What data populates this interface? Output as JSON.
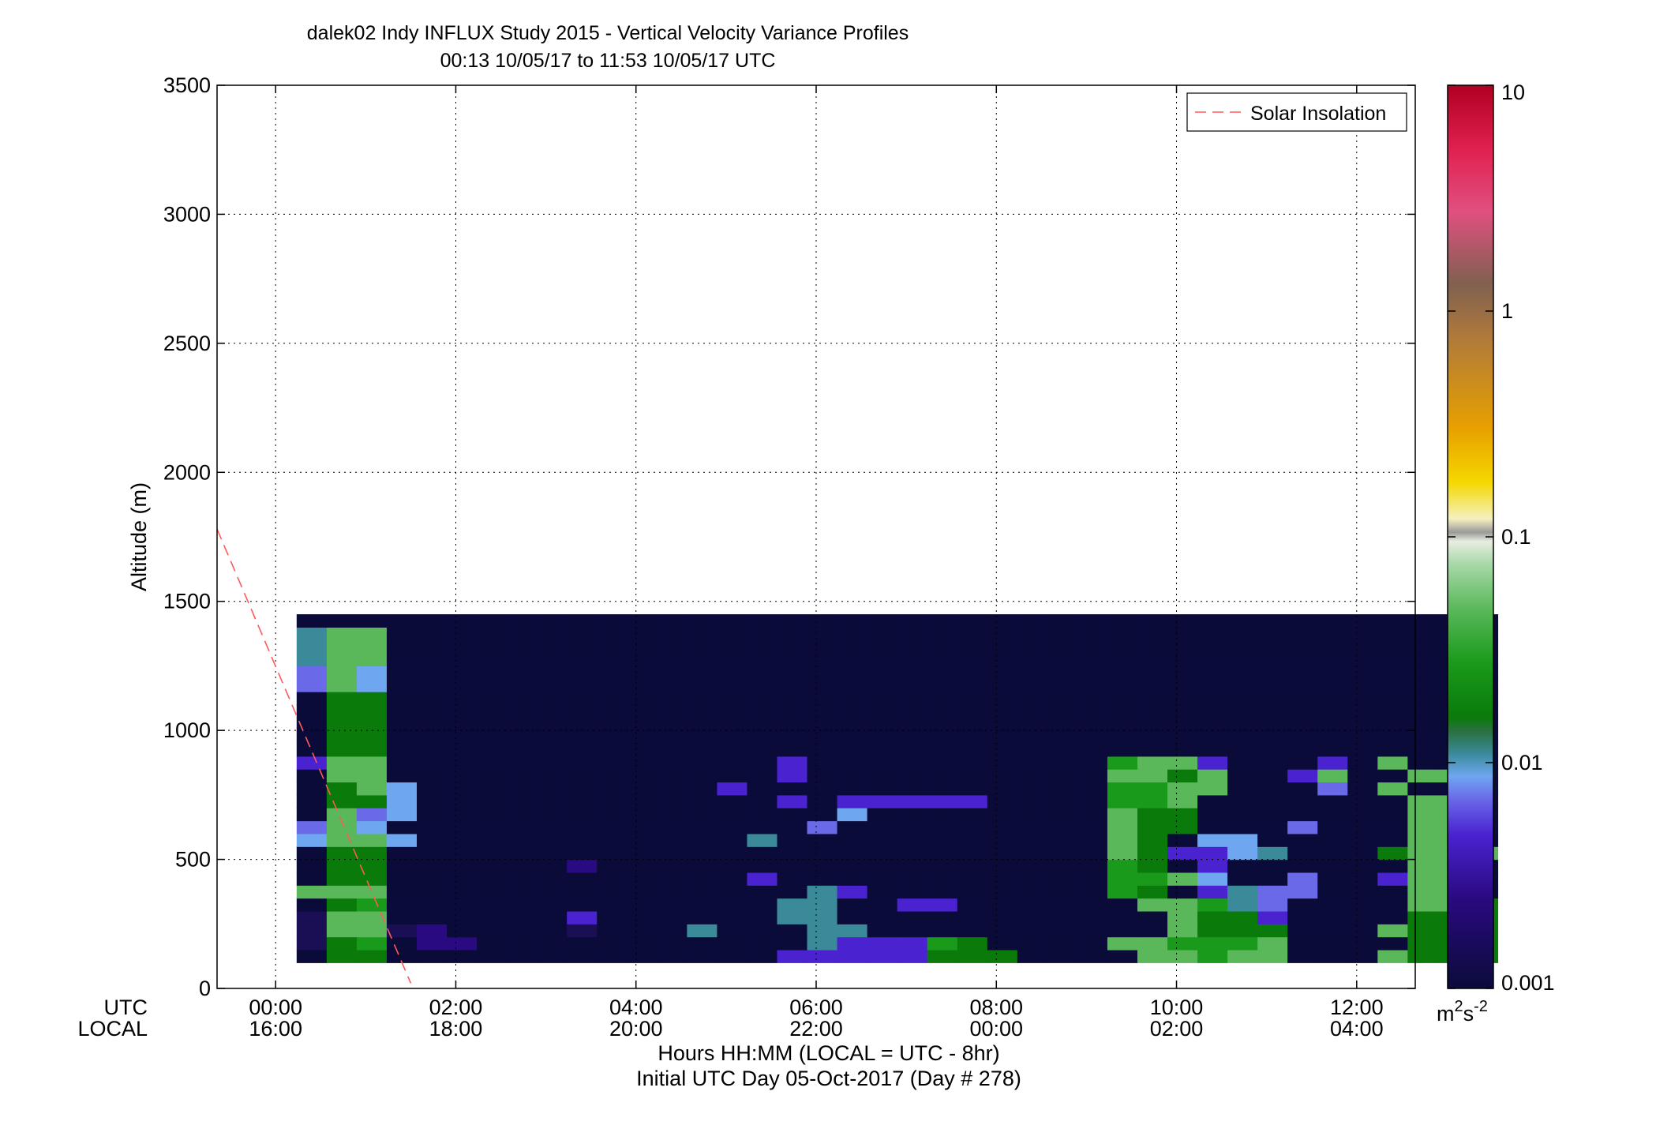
{
  "chart_data": {
    "type": "heatmap",
    "title": "dalek02 Indy INFLUX Study 2015 - Vertical Velocity Variance Profiles",
    "subtitle": "00:13 10/05/17 to 11:53 10/05/17  UTC",
    "ylabel": "Altitude (m)",
    "xlabel": "Hours HH:MM  (LOCAL = UTC - 8hr)",
    "xlabel2": "Initial UTC Day 05-Oct-2017 (Day # 278)",
    "axis_row_labels": [
      "UTC",
      "LOCAL"
    ],
    "ylim": [
      0,
      3500
    ],
    "xlim_hours": [
      -0.65,
      12.65
    ],
    "yticks": [
      0,
      500,
      1000,
      1500,
      2000,
      2500,
      3000,
      3500
    ],
    "xticks_utc": [
      "00:00",
      "02:00",
      "04:00",
      "06:00",
      "08:00",
      "10:00",
      "12:00"
    ],
    "xticks_local": [
      "16:00",
      "18:00",
      "20:00",
      "22:00",
      "00:00",
      "02:00",
      "04:00"
    ],
    "grid": true,
    "legend": {
      "position": "top-right",
      "entries": [
        {
          "label": "Solar Insolation",
          "style": "dashed",
          "color": "#ff5a5a"
        }
      ]
    },
    "colorbar": {
      "scale": "log",
      "range": [
        0.001,
        10
      ],
      "ticks": [
        "0.001",
        "0.01",
        "0.1",
        "1",
        "10"
      ],
      "units_label": "m",
      "units_sup1": "2",
      "units_mid": "s",
      "units_sup2": "-2",
      "stops": [
        [
          0.0,
          "#0b0b3a"
        ],
        [
          0.1,
          "#2a0a80"
        ],
        [
          0.17,
          "#4a22d0"
        ],
        [
          0.21,
          "#6a6ae8"
        ],
        [
          0.235,
          "#6fa6f0"
        ],
        [
          0.26,
          "#3a8a9a"
        ],
        [
          0.285,
          "#2a7040"
        ],
        [
          0.3,
          "#0a7a0a"
        ],
        [
          0.36,
          "#1a9a1a"
        ],
        [
          0.42,
          "#5ab85a"
        ],
        [
          0.47,
          "#a8d8a8"
        ],
        [
          0.495,
          "#e8ede0"
        ],
        [
          0.505,
          "#9a9a9a"
        ],
        [
          0.52,
          "#f5f0c0"
        ],
        [
          0.56,
          "#f5d800"
        ],
        [
          0.62,
          "#e8a000"
        ],
        [
          0.72,
          "#b07a3a"
        ],
        [
          0.78,
          "#806050"
        ],
        [
          0.86,
          "#e05080"
        ],
        [
          0.93,
          "#e02050"
        ],
        [
          1.0,
          "#b00020"
        ]
      ]
    },
    "colors": {
      "0": "#0b0b3a",
      "1": "#1a0e55",
      "2": "#2a0a80",
      "3": "#4a22d0",
      "4": "#6a6ae8",
      "5": "#6fa6f0",
      "6": "#3a8a9a",
      "7": "#0a7a0a",
      "8": "#1a9a1a",
      "9": "#5ab85a",
      "a": "#a8d8a8",
      "b": "#e8ede0",
      "c": "#f5d800",
      "d": "#e8a000",
      "e": "#9a9a9a",
      "f": "#f5f0c0",
      "g": "#a06040",
      "h": "#2a7040",
      "w": "#ffffff"
    },
    "profiles": {
      "gate_height_m": 50,
      "first_gate_m": 100,
      "first_profile_hour": 0.4,
      "profile_step_hours": 0.3333,
      "rows_from_first_gate": [
        "0770000000000000333337770000998990009777",
        "1780220000000000063338700009988890000777",
        "1991200001000600066000000000097770009777",
        "1990000003000000660000000000097730000777",
        "0780000000000000660033000000998640000997",
        "9990000000000000063000000008703644000990",
        "0770000000000003000000000008895004003990",
        "0770000002000000000000000008703000000990",
        "0770000000000000000000000009733560007999",
        "5995000000000006000000000009705500000990",
        "4950000000000000040000000009770004000990",
        "0945000000000000005000000009770000000990",
        "0775000000000000303333300008890000000990",
        "0795000000000030000000000008899000409000",
        "0990000000000000300000000009979003900990",
        "3990000000000000300000000008993000309000",
        "0770000000000000000000000000000000000000",
        "0770000000000000000000000000000000000000",
        "0770000000000000000000000000000000000000",
        "0770000000000000000000000000000000000000",
        "0770000000000000000000000000000000000000",
        "4950000000000000000000000000000000000000",
        "4950000000000000000000000000000000000000",
        "6990000000000000000000000000000000000000",
        "6990000000000000000000000000000000000000",
        "6990000000000000000000000000000000000000",
        "0000000000000000000000000000000000000000"
      ]
    }
  }
}
